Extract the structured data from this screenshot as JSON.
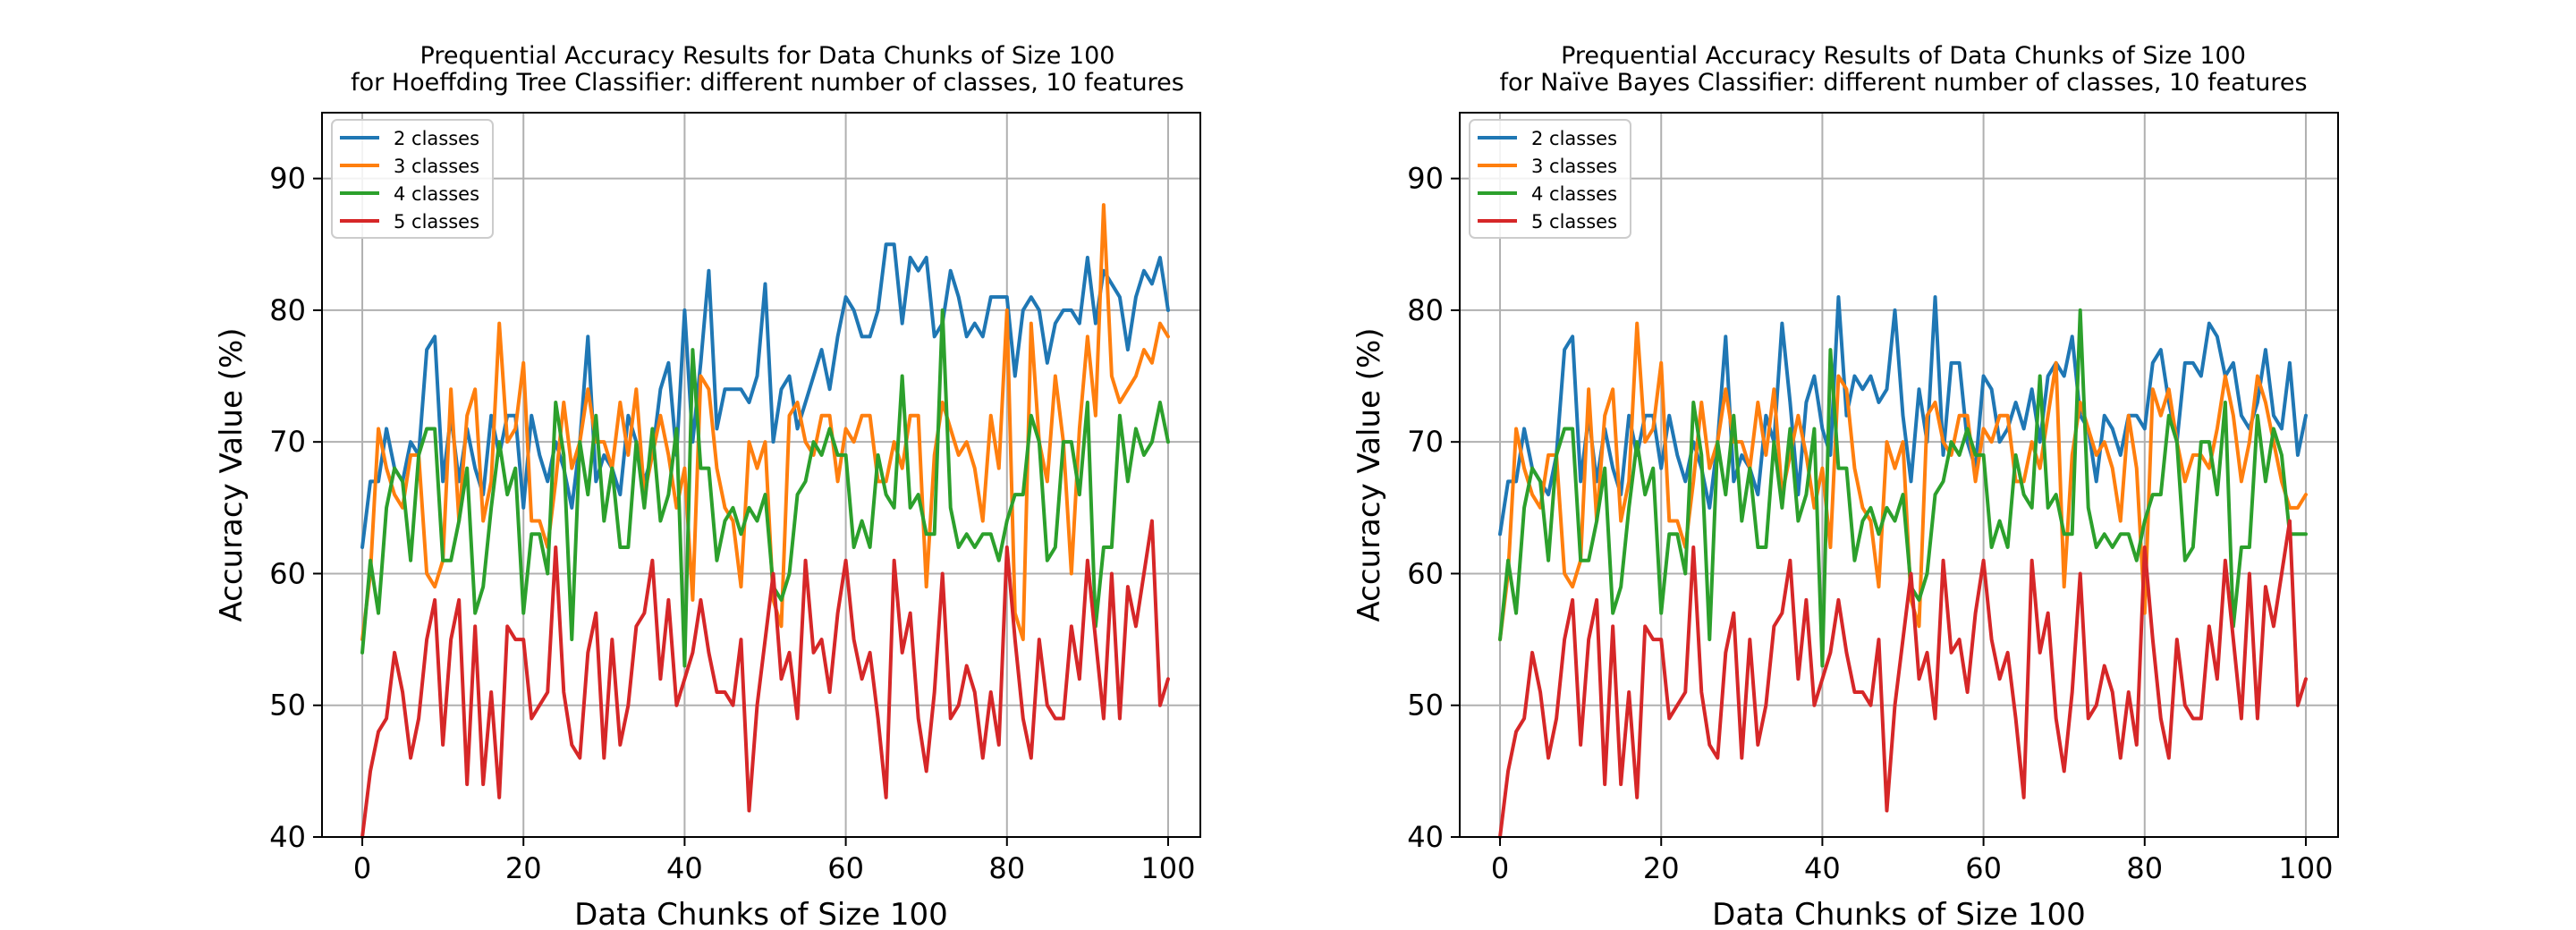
{
  "chart_data": [
    {
      "type": "line",
      "title": "Prequential Accuracy Results for Data Chunks of Size 100\nfor Hoeffding Tree Classifier: different number of classes, 10 features",
      "xlabel": "Data Chunks of Size 100",
      "ylabel": "Accuracy Value (%)",
      "xlim": [
        -5,
        104
      ],
      "ylim": [
        40,
        95
      ],
      "xticks": [
        "0",
        "20",
        "40",
        "60",
        "80",
        "100"
      ],
      "yticks": [
        "40",
        "50",
        "60",
        "70",
        "80",
        "90"
      ],
      "grid": true,
      "legend_position": "top-left",
      "series": [
        {
          "name": "2 classes",
          "color": "#1f77b4",
          "values": [
            62,
            67,
            67,
            71,
            68,
            67,
            70,
            69,
            77,
            78,
            67,
            72,
            67,
            71,
            68,
            66,
            72,
            69,
            72,
            72,
            65,
            72,
            69,
            67,
            70,
            68,
            65,
            70,
            78,
            67,
            69,
            68,
            66,
            72,
            70,
            67,
            69,
            74,
            76,
            69,
            80,
            70,
            76,
            83,
            71,
            74,
            74,
            74,
            73,
            75,
            82,
            70,
            74,
            75,
            71,
            73,
            75,
            77,
            74,
            78,
            81,
            80,
            78,
            78,
            80,
            85,
            85,
            79,
            84,
            83,
            84,
            78,
            79,
            83,
            81,
            78,
            79,
            78,
            81,
            81,
            81,
            75,
            80,
            81,
            80,
            76,
            79,
            80,
            80,
            79,
            84,
            79,
            83,
            82,
            81,
            77,
            81,
            83,
            82,
            84,
            80
          ]
        },
        {
          "name": "3 classes",
          "color": "#ff7f0e",
          "values": [
            55,
            60,
            71,
            68,
            66,
            65,
            69,
            69,
            60,
            59,
            61,
            74,
            64,
            72,
            74,
            64,
            67,
            79,
            70,
            71,
            76,
            64,
            64,
            62,
            67,
            73,
            68,
            70,
            74,
            70,
            70,
            68,
            73,
            69,
            74,
            66,
            69,
            72,
            69,
            65,
            68,
            58,
            75,
            74,
            68,
            65,
            64,
            59,
            70,
            68,
            70,
            58,
            56,
            72,
            73,
            70,
            69,
            72,
            72,
            67,
            71,
            70,
            72,
            72,
            67,
            67,
            70,
            68,
            72,
            72,
            59,
            69,
            73,
            71,
            69,
            70,
            68,
            64,
            72,
            68,
            80,
            57,
            55,
            79,
            70,
            67,
            75,
            70,
            60,
            71,
            78,
            72,
            88,
            75,
            73,
            74,
            75,
            77,
            76,
            79,
            78
          ]
        },
        {
          "name": "4 classes",
          "color": "#2ca02c",
          "values": [
            54,
            61,
            57,
            65,
            68,
            67,
            61,
            69,
            71,
            71,
            61,
            61,
            64,
            68,
            57,
            59,
            65,
            70,
            66,
            68,
            57,
            63,
            63,
            60,
            73,
            69,
            55,
            70,
            66,
            72,
            64,
            68,
            62,
            62,
            70,
            65,
            71,
            64,
            66,
            71,
            53,
            77,
            68,
            68,
            61,
            64,
            65,
            63,
            65,
            64,
            66,
            59,
            58,
            60,
            66,
            67,
            70,
            69,
            71,
            69,
            69,
            62,
            64,
            62,
            69,
            66,
            65,
            75,
            65,
            66,
            63,
            63,
            80,
            65,
            62,
            63,
            62,
            63,
            63,
            61,
            64,
            66,
            66,
            72,
            70,
            61,
            62,
            70,
            70,
            66,
            73,
            56,
            62,
            62,
            72,
            67,
            71,
            69,
            70,
            73,
            70
          ]
        },
        {
          "name": "5 classes",
          "color": "#d62728",
          "values": [
            40,
            45,
            48,
            49,
            54,
            51,
            46,
            49,
            55,
            58,
            47,
            55,
            58,
            44,
            56,
            44,
            51,
            43,
            56,
            55,
            55,
            49,
            50,
            51,
            62,
            51,
            47,
            46,
            54,
            57,
            46,
            55,
            47,
            50,
            56,
            57,
            61,
            52,
            58,
            50,
            52,
            54,
            58,
            54,
            51,
            51,
            50,
            55,
            42,
            50,
            55,
            60,
            52,
            54,
            49,
            61,
            54,
            55,
            51,
            57,
            61,
            55,
            52,
            54,
            49,
            43,
            61,
            54,
            57,
            49,
            45,
            51,
            60,
            49,
            50,
            53,
            51,
            46,
            51,
            47,
            62,
            55,
            49,
            46,
            55,
            50,
            49,
            49,
            56,
            52,
            61,
            55,
            49,
            60,
            49,
            59,
            56,
            60,
            64,
            50,
            52
          ]
        }
      ]
    },
    {
      "type": "line",
      "title": "Prequential Accuracy Results of Data Chunks of Size 100\nfor Naïve Bayes Classifier: different number of classes, 10 features",
      "xlabel": "Data Chunks of Size 100",
      "ylabel": "Accuracy Value (%)",
      "xlim": [
        -5,
        104
      ],
      "ylim": [
        40,
        95
      ],
      "xticks": [
        "0",
        "20",
        "40",
        "60",
        "80",
        "100"
      ],
      "yticks": [
        "40",
        "50",
        "60",
        "70",
        "80",
        "90"
      ],
      "grid": true,
      "legend_position": "top-left",
      "series": [
        {
          "name": "2 classes",
          "color": "#1f77b4",
          "values": [
            63,
            67,
            67,
            71,
            68,
            67,
            66,
            69,
            77,
            78,
            67,
            72,
            67,
            71,
            68,
            66,
            72,
            69,
            72,
            72,
            68,
            72,
            69,
            67,
            70,
            68,
            65,
            70,
            78,
            67,
            69,
            68,
            66,
            72,
            70,
            79,
            73,
            66,
            73,
            75,
            71,
            69,
            81,
            72,
            75,
            74,
            75,
            73,
            74,
            80,
            72,
            67,
            74,
            70,
            81,
            69,
            76,
            76,
            70,
            68,
            75,
            74,
            70,
            71,
            73,
            71,
            74,
            70,
            75,
            76,
            75,
            78,
            72,
            71,
            67,
            72,
            71,
            69,
            72,
            72,
            71,
            76,
            77,
            73,
            70,
            76,
            76,
            75,
            79,
            78,
            75,
            76,
            72,
            71,
            73,
            77,
            72,
            71,
            76,
            69,
            72
          ]
        },
        {
          "name": "3 classes",
          "color": "#ff7f0e",
          "values": [
            55,
            60,
            71,
            68,
            66,
            65,
            69,
            69,
            60,
            59,
            61,
            74,
            64,
            72,
            74,
            64,
            67,
            79,
            70,
            71,
            76,
            64,
            64,
            62,
            67,
            73,
            68,
            70,
            74,
            70,
            70,
            68,
            73,
            69,
            74,
            66,
            69,
            72,
            69,
            65,
            68,
            62,
            75,
            74,
            68,
            65,
            64,
            59,
            70,
            68,
            70,
            58,
            56,
            72,
            73,
            70,
            69,
            72,
            72,
            67,
            71,
            70,
            72,
            72,
            67,
            67,
            70,
            68,
            72,
            76,
            59,
            69,
            73,
            71,
            69,
            70,
            68,
            64,
            72,
            68,
            57,
            74,
            72,
            74,
            70,
            67,
            69,
            69,
            68,
            71,
            75,
            72,
            67,
            70,
            75,
            73,
            70,
            67,
            65,
            65,
            66
          ]
        },
        {
          "name": "4 classes",
          "color": "#2ca02c",
          "values": [
            55,
            61,
            57,
            65,
            68,
            67,
            61,
            69,
            71,
            71,
            61,
            61,
            64,
            68,
            57,
            59,
            65,
            70,
            66,
            68,
            57,
            63,
            63,
            60,
            73,
            69,
            55,
            70,
            66,
            72,
            64,
            68,
            62,
            62,
            70,
            65,
            71,
            64,
            66,
            71,
            53,
            77,
            68,
            68,
            61,
            64,
            65,
            63,
            65,
            64,
            66,
            59,
            58,
            60,
            66,
            67,
            70,
            69,
            71,
            69,
            69,
            62,
            64,
            62,
            69,
            66,
            65,
            75,
            65,
            66,
            63,
            63,
            80,
            65,
            62,
            63,
            62,
            63,
            63,
            61,
            64,
            66,
            66,
            72,
            70,
            61,
            62,
            70,
            70,
            66,
            73,
            56,
            62,
            62,
            72,
            67,
            71,
            69,
            63,
            63,
            63
          ]
        },
        {
          "name": "5 classes",
          "color": "#d62728",
          "values": [
            40,
            45,
            48,
            49,
            54,
            51,
            46,
            49,
            55,
            58,
            47,
            55,
            58,
            44,
            56,
            44,
            51,
            43,
            56,
            55,
            55,
            49,
            50,
            51,
            62,
            51,
            47,
            46,
            54,
            57,
            46,
            55,
            47,
            50,
            56,
            57,
            61,
            52,
            58,
            50,
            52,
            54,
            58,
            54,
            51,
            51,
            50,
            55,
            42,
            50,
            55,
            60,
            52,
            54,
            49,
            61,
            54,
            55,
            51,
            57,
            61,
            55,
            52,
            54,
            49,
            43,
            61,
            54,
            57,
            49,
            45,
            51,
            60,
            49,
            50,
            53,
            51,
            46,
            51,
            47,
            62,
            55,
            49,
            46,
            55,
            50,
            49,
            49,
            56,
            52,
            61,
            55,
            49,
            60,
            49,
            59,
            56,
            60,
            64,
            50,
            52
          ]
        }
      ]
    }
  ]
}
